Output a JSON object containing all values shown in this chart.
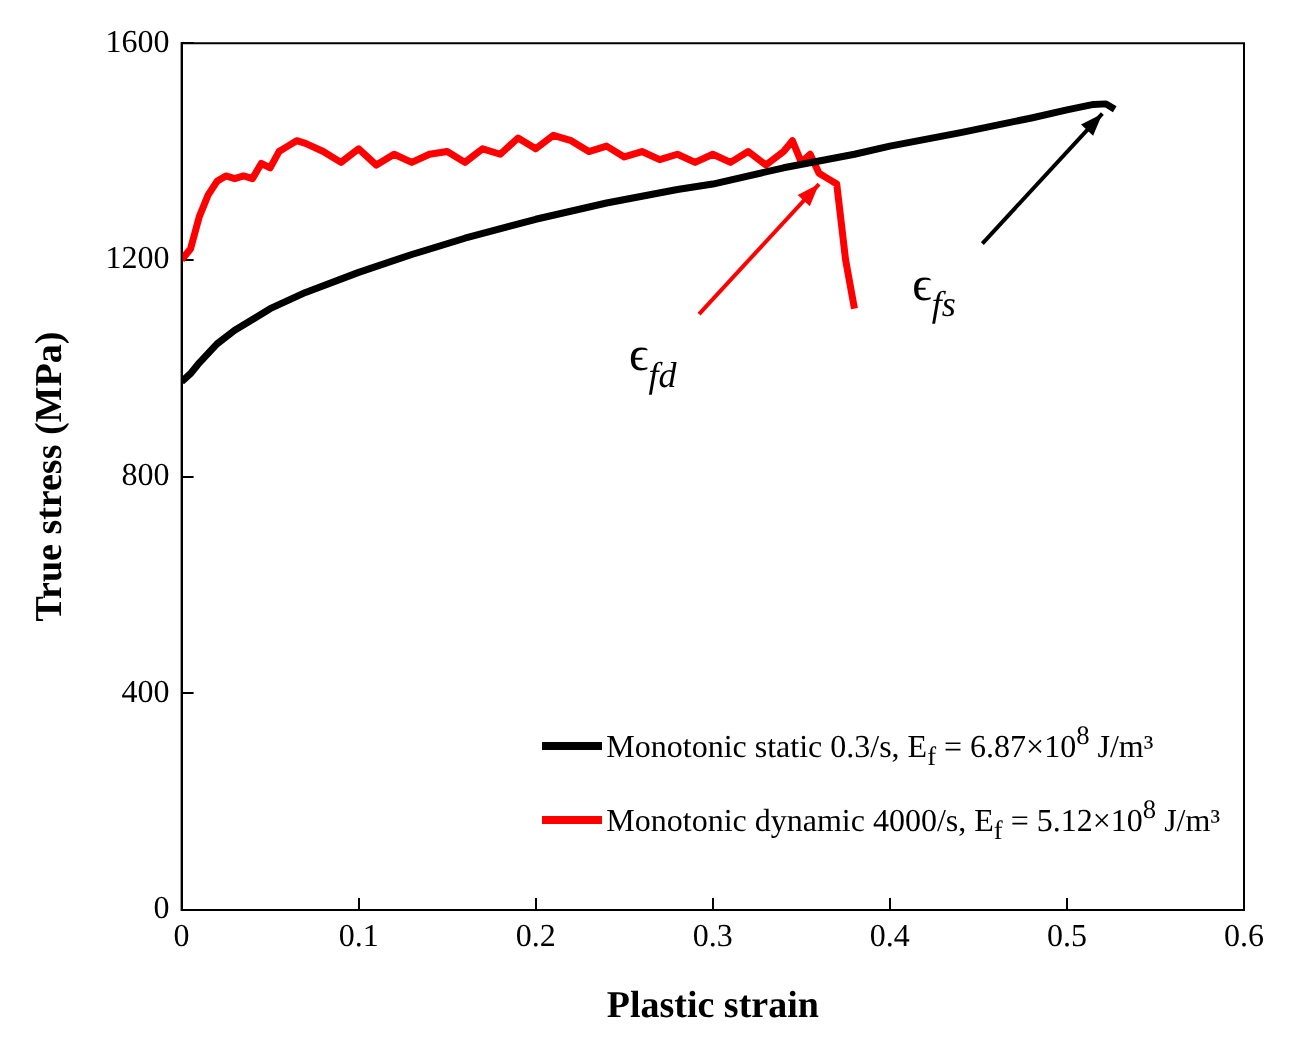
{
  "chart_data": {
    "type": "line",
    "xlabel": "Plastic strain",
    "ylabel": "True stress (MPa)",
    "xlim": [
      0,
      0.6
    ],
    "xticks": [
      0,
      0.1,
      0.2,
      0.3,
      0.4,
      0.5,
      0.6
    ],
    "ylim": [
      0,
      1600
    ],
    "yticks": [
      0,
      400,
      800,
      1200,
      1600
    ],
    "grid": false,
    "legend": "bottom right",
    "marker": "none",
    "line_style": "solid",
    "series": [
      {
        "name": "Monotonic static 0.3/s, E$_{f}$ = 6.87×10$^{8}$ J/m³",
        "color": "#000000",
        "x": [
          0,
          0.005,
          0.01,
          0.02,
          0.03,
          0.05,
          0.07,
          0.1,
          0.13,
          0.16,
          0.2,
          0.24,
          0.28,
          0.3,
          0.34,
          0.38,
          0.4,
          0.44,
          0.48,
          0.5,
          0.515,
          0.522,
          0.527
        ],
        "values": [
          975,
          990,
          1010,
          1045,
          1070,
          1110,
          1140,
          1177,
          1210,
          1240,
          1275,
          1305,
          1330,
          1340,
          1370,
          1395,
          1410,
          1435,
          1462,
          1477,
          1487,
          1488,
          1478
        ]
      },
      {
        "name": "Monotonic dynamic 4000/s, E$_{f}$ = 5.12×10$^{8}$ J/m³",
        "color": "#ff0000",
        "x": [
          0,
          0.005,
          0.01,
          0.015,
          0.02,
          0.025,
          0.03,
          0.035,
          0.04,
          0.045,
          0.05,
          0.055,
          0.06,
          0.065,
          0.07,
          0.08,
          0.09,
          0.1,
          0.11,
          0.12,
          0.13,
          0.14,
          0.15,
          0.16,
          0.17,
          0.18,
          0.19,
          0.2,
          0.21,
          0.22,
          0.23,
          0.24,
          0.25,
          0.26,
          0.27,
          0.28,
          0.29,
          0.3,
          0.31,
          0.32,
          0.33,
          0.34,
          0.345,
          0.35,
          0.355,
          0.36,
          0.365,
          0.37,
          0.375,
          0.38
        ],
        "values": [
          1200,
          1220,
          1280,
          1320,
          1345,
          1355,
          1350,
          1355,
          1350,
          1378,
          1370,
          1400,
          1410,
          1420,
          1415,
          1400,
          1380,
          1405,
          1375,
          1395,
          1380,
          1395,
          1400,
          1380,
          1405,
          1395,
          1425,
          1405,
          1430,
          1420,
          1400,
          1410,
          1390,
          1400,
          1385,
          1395,
          1380,
          1395,
          1380,
          1400,
          1375,
          1400,
          1420,
          1380,
          1395,
          1360,
          1350,
          1340,
          1200,
          1110
        ]
      }
    ],
    "annotations": [
      {
        "text": "ϵ$_{fd}$",
        "x": 0.36,
        "y": 1340
      },
      {
        "text": "ϵ$_{fs}$",
        "x": 0.52,
        "y": 1470
      }
    ]
  }
}
